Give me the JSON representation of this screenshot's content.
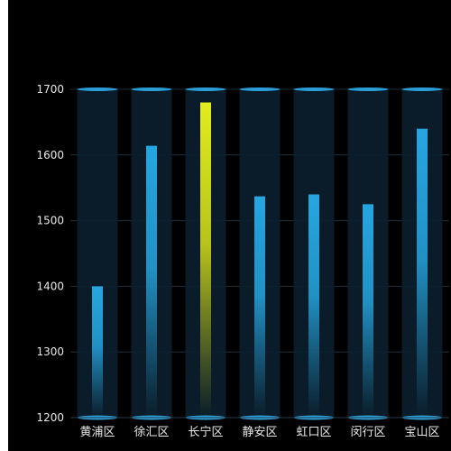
{
  "chart_data": {
    "type": "bar",
    "title": "",
    "xlabel": "",
    "ylabel": "",
    "categories": [
      "黄浦区",
      "徐汇区",
      "长宁区",
      "静安区",
      "虹口区",
      "闵行区",
      "宝山区"
    ],
    "values": [
      1400,
      1614,
      1680,
      1537,
      1540,
      1525,
      1640
    ],
    "ylim": [
      1200,
      1700
    ],
    "yticks": [
      1200,
      1300,
      1400,
      1500,
      1600,
      1700
    ],
    "grid": true,
    "legend": "none",
    "highlight_index": 2,
    "colors": {
      "bar": "#26a6e0",
      "highlight": "#e2ec1f",
      "background_column": "#0b1f2e",
      "cap": "#2b9ed8",
      "grid": "#1e2e3a",
      "text": "#e8e8e8"
    }
  }
}
